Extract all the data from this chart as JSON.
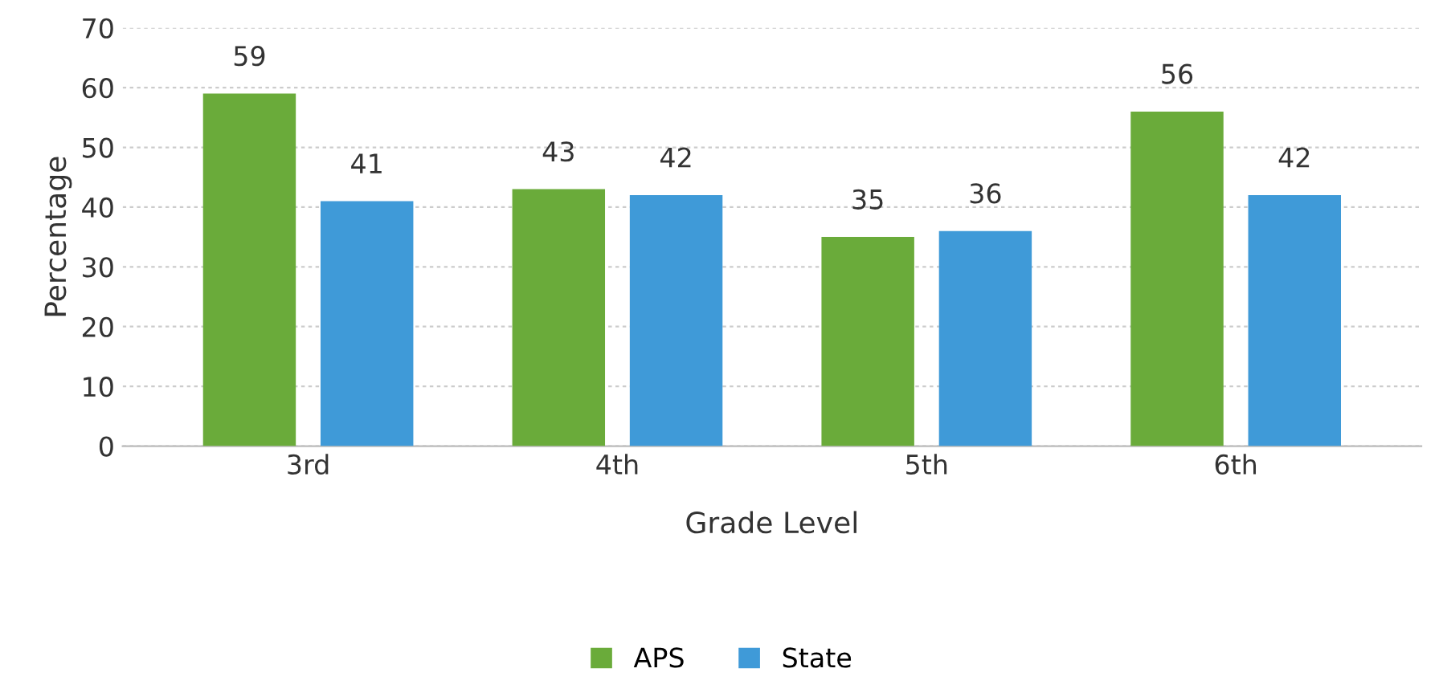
{
  "chart_data": {
    "type": "bar",
    "xlabel": "Grade Level",
    "ylabel": "Percentage",
    "categories": [
      "3rd",
      "4th",
      "5th",
      "6th"
    ],
    "series": [
      {
        "name": "APS",
        "color": "#6aab3a",
        "values": [
          59,
          43,
          35,
          56
        ]
      },
      {
        "name": "State",
        "color": "#3f9ad8",
        "values": [
          41,
          42,
          36,
          42
        ]
      }
    ],
    "ylim": [
      0,
      70
    ],
    "yticks": [
      0,
      10,
      20,
      30,
      40,
      50,
      60,
      70
    ],
    "grid": "y",
    "legend": "bottom",
    "data_labels": true
  }
}
